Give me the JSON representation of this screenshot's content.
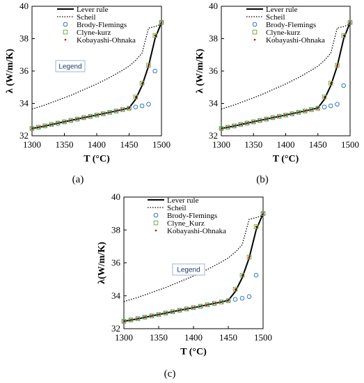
{
  "chart_data": [
    {
      "type": "line",
      "caption": "(a)",
      "xlabel": "T (°C)",
      "ylabel": "λ (W/m/K)",
      "xlim": [
        1300,
        1500
      ],
      "ylim": [
        32,
        40
      ],
      "xticks": [
        "1300",
        "1350",
        "1400",
        "1450",
        "1500"
      ],
      "yticks": [
        "32",
        "34",
        "36",
        "38",
        "40"
      ],
      "legend_box": "Legend",
      "legend_position": "top-left",
      "series": [
        {
          "name": "Lever rule",
          "style": "solid",
          "color": "#000000",
          "x": [
            1300,
            1320,
            1340,
            1360,
            1380,
            1400,
            1420,
            1440,
            1450,
            1460,
            1470,
            1480,
            1490,
            1500
          ],
          "y": [
            32.45,
            32.6,
            32.78,
            32.95,
            33.12,
            33.28,
            33.45,
            33.62,
            33.72,
            34.25,
            35.1,
            36.3,
            38.0,
            39.0
          ]
        },
        {
          "name": "Scheil",
          "style": "dotted",
          "color": "#000000",
          "x": [
            1300,
            1320,
            1340,
            1360,
            1380,
            1400,
            1420,
            1440,
            1450,
            1460,
            1470,
            1480,
            1490,
            1500
          ],
          "y": [
            33.65,
            33.9,
            34.2,
            34.5,
            34.85,
            35.2,
            35.6,
            36.05,
            36.3,
            36.65,
            37.1,
            38.65,
            38.75,
            38.9
          ]
        },
        {
          "name": "Brody-Flemings",
          "marker": "circle",
          "color": "#2e75b6",
          "x": [
            1300,
            1310,
            1320,
            1330,
            1340,
            1350,
            1360,
            1370,
            1380,
            1390,
            1400,
            1410,
            1420,
            1430,
            1440,
            1450,
            1460,
            1470,
            1480,
            1490,
            1500
          ],
          "y": [
            32.45,
            32.53,
            32.61,
            32.7,
            32.78,
            32.86,
            32.95,
            33.03,
            33.12,
            33.2,
            33.28,
            33.36,
            33.45,
            33.53,
            33.62,
            33.7,
            33.78,
            33.85,
            33.95,
            36.0,
            39.0
          ]
        },
        {
          "name": "Clyne-kurz",
          "marker": "square",
          "color": "#70ad47",
          "x": [
            1300,
            1310,
            1320,
            1330,
            1340,
            1350,
            1360,
            1370,
            1380,
            1390,
            1400,
            1410,
            1420,
            1430,
            1440,
            1450,
            1460,
            1470,
            1480,
            1490,
            1500
          ],
          "y": [
            32.45,
            32.53,
            32.61,
            32.7,
            32.78,
            32.86,
            32.95,
            33.03,
            33.12,
            33.2,
            33.28,
            33.36,
            33.45,
            33.53,
            33.62,
            33.7,
            34.4,
            35.25,
            36.35,
            38.2,
            39.0
          ]
        },
        {
          "name": "Kobayashi-Ohnaka",
          "marker": "dot",
          "color": "#c00000",
          "x": [
            1300,
            1310,
            1320,
            1330,
            1340,
            1350,
            1360,
            1370,
            1380,
            1390,
            1400,
            1410,
            1420,
            1430,
            1440,
            1450,
            1460,
            1470,
            1480,
            1490,
            1500
          ],
          "y": [
            32.45,
            32.53,
            32.61,
            32.7,
            32.78,
            32.86,
            32.95,
            33.03,
            33.12,
            33.2,
            33.28,
            33.36,
            33.45,
            33.53,
            33.62,
            33.7,
            34.4,
            35.25,
            36.35,
            38.2,
            39.0
          ]
        }
      ]
    },
    {
      "type": "line",
      "caption": "(b)",
      "xlabel": "T (°C)",
      "ylabel": "λ (W/m/K)",
      "xlim": [
        1300,
        1500
      ],
      "ylim": [
        32,
        40
      ],
      "xticks": [
        "1300",
        "1350",
        "1400",
        "1450",
        "1500"
      ],
      "yticks": [
        "32",
        "34",
        "36",
        "38",
        "40"
      ],
      "legend_box": "",
      "legend_position": "top-right",
      "series": [
        {
          "name": "Lever rule",
          "style": "solid",
          "color": "#000000",
          "x": [
            1300,
            1320,
            1340,
            1360,
            1380,
            1400,
            1420,
            1440,
            1450,
            1460,
            1470,
            1480,
            1490,
            1500
          ],
          "y": [
            32.45,
            32.6,
            32.78,
            32.95,
            33.12,
            33.28,
            33.45,
            33.62,
            33.72,
            34.25,
            35.1,
            36.3,
            38.0,
            39.0
          ]
        },
        {
          "name": "Scheil",
          "style": "dotted",
          "color": "#000000",
          "x": [
            1300,
            1320,
            1340,
            1360,
            1380,
            1400,
            1420,
            1440,
            1450,
            1460,
            1470,
            1480,
            1490,
            1500
          ],
          "y": [
            33.65,
            33.9,
            34.2,
            34.5,
            34.85,
            35.2,
            35.6,
            36.05,
            36.3,
            36.65,
            37.1,
            38.65,
            38.75,
            38.9
          ]
        },
        {
          "name": "Brody-Flemings",
          "marker": "circle",
          "color": "#2e75b6",
          "x": [
            1300,
            1310,
            1320,
            1330,
            1340,
            1350,
            1360,
            1370,
            1380,
            1390,
            1400,
            1410,
            1420,
            1430,
            1440,
            1450,
            1460,
            1470,
            1480,
            1490,
            1500
          ],
          "y": [
            32.45,
            32.53,
            32.61,
            32.7,
            32.78,
            32.86,
            32.95,
            33.03,
            33.12,
            33.2,
            33.28,
            33.36,
            33.45,
            33.53,
            33.62,
            33.7,
            33.78,
            33.85,
            33.95,
            35.1,
            39.0
          ]
        },
        {
          "name": "Clyne-kurz",
          "marker": "square",
          "color": "#70ad47",
          "x": [
            1300,
            1310,
            1320,
            1330,
            1340,
            1350,
            1360,
            1370,
            1380,
            1390,
            1400,
            1410,
            1420,
            1430,
            1440,
            1450,
            1460,
            1470,
            1480,
            1490,
            1500
          ],
          "y": [
            32.45,
            32.53,
            32.61,
            32.7,
            32.78,
            32.86,
            32.95,
            33.03,
            33.12,
            33.2,
            33.28,
            33.36,
            33.45,
            33.53,
            33.62,
            33.7,
            34.4,
            35.25,
            36.35,
            38.2,
            39.0
          ]
        },
        {
          "name": "Kobayashi-Ohnaka",
          "marker": "dot",
          "color": "#c00000",
          "x": [
            1300,
            1310,
            1320,
            1330,
            1340,
            1350,
            1360,
            1370,
            1380,
            1390,
            1400,
            1410,
            1420,
            1430,
            1440,
            1450,
            1460,
            1470,
            1480,
            1490,
            1500
          ],
          "y": [
            32.45,
            32.53,
            32.61,
            32.7,
            32.78,
            32.86,
            32.95,
            33.03,
            33.12,
            33.2,
            33.28,
            33.36,
            33.45,
            33.53,
            33.62,
            33.7,
            34.4,
            35.25,
            36.35,
            38.2,
            39.0
          ]
        }
      ]
    },
    {
      "type": "line",
      "caption": "(c)",
      "xlabel": "T (°C)",
      "ylabel": "λ(W/m/K)",
      "xlim": [
        1300,
        1500
      ],
      "ylim": [
        32,
        40
      ],
      "xticks": [
        "1300",
        "1350",
        "1400",
        "1450",
        "1500"
      ],
      "yticks": [
        "32",
        "34",
        "36",
        "38",
        "40"
      ],
      "legend_box": "Legend",
      "legend_position": "top-right",
      "series": [
        {
          "name": "Lever rule",
          "style": "solid",
          "color": "#000000",
          "x": [
            1300,
            1320,
            1340,
            1360,
            1380,
            1400,
            1420,
            1440,
            1450,
            1460,
            1470,
            1480,
            1490,
            1500
          ],
          "y": [
            32.45,
            32.6,
            32.78,
            32.95,
            33.12,
            33.28,
            33.45,
            33.62,
            33.72,
            34.25,
            35.1,
            36.3,
            38.0,
            39.0
          ]
        },
        {
          "name": "Scheil",
          "style": "dotted",
          "color": "#000000",
          "x": [
            1300,
            1320,
            1340,
            1360,
            1380,
            1400,
            1420,
            1440,
            1450,
            1460,
            1470,
            1480,
            1490,
            1500
          ],
          "y": [
            33.65,
            33.9,
            34.2,
            34.5,
            34.85,
            35.2,
            35.6,
            36.05,
            36.3,
            36.65,
            37.1,
            38.65,
            38.75,
            38.9
          ]
        },
        {
          "name": "Brody-Flemings",
          "marker": "circle",
          "color": "#2e75b6",
          "x": [
            1300,
            1310,
            1320,
            1330,
            1340,
            1350,
            1360,
            1370,
            1380,
            1390,
            1400,
            1410,
            1420,
            1430,
            1440,
            1450,
            1460,
            1470,
            1480,
            1490,
            1500
          ],
          "y": [
            32.45,
            32.53,
            32.61,
            32.7,
            32.78,
            32.86,
            32.95,
            33.03,
            33.12,
            33.2,
            33.28,
            33.36,
            33.45,
            33.53,
            33.62,
            33.7,
            33.78,
            33.85,
            33.95,
            35.25,
            39.0
          ]
        },
        {
          "name": "Clyne_Kurz",
          "marker": "square",
          "color": "#70ad47",
          "x": [
            1300,
            1310,
            1320,
            1330,
            1340,
            1350,
            1360,
            1370,
            1380,
            1390,
            1400,
            1410,
            1420,
            1430,
            1440,
            1450,
            1460,
            1470,
            1480,
            1490,
            1500
          ],
          "y": [
            32.45,
            32.53,
            32.61,
            32.7,
            32.78,
            32.86,
            32.95,
            33.03,
            33.12,
            33.2,
            33.28,
            33.36,
            33.45,
            33.53,
            33.62,
            33.7,
            34.4,
            35.25,
            36.35,
            38.2,
            39.0
          ]
        },
        {
          "name": "Kobayashi-Ohnaka",
          "marker": "dot",
          "color": "#c00000",
          "x": [
            1300,
            1310,
            1320,
            1330,
            1340,
            1350,
            1360,
            1370,
            1380,
            1390,
            1400,
            1410,
            1420,
            1430,
            1440,
            1450,
            1460,
            1470,
            1480,
            1490,
            1500
          ],
          "y": [
            32.45,
            32.53,
            32.61,
            32.7,
            32.78,
            32.86,
            32.95,
            33.03,
            33.12,
            33.2,
            33.28,
            33.36,
            33.45,
            33.53,
            33.62,
            33.7,
            34.4,
            35.25,
            36.35,
            38.2,
            39.0
          ]
        }
      ]
    }
  ]
}
